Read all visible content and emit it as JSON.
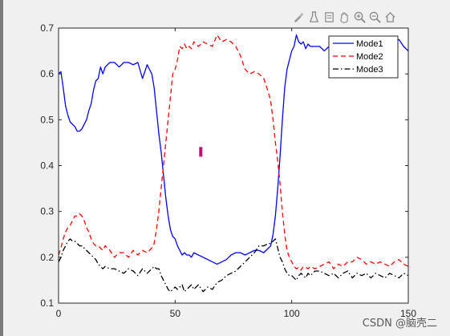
{
  "toolbar": {
    "icons": [
      "brush-icon",
      "datatip-icon",
      "rotate-icon",
      "pan-icon",
      "zoom-in-icon",
      "zoom-out-icon",
      "home-icon"
    ]
  },
  "watermark": "CSDN @脑壳二",
  "colors": {
    "mode1": "#0000ff",
    "mode2": "#ff0000",
    "mode3": "#000000",
    "marker": "#cc0077",
    "figure_bg": "#f0f0f0",
    "axes_bg": "#ffffff"
  },
  "chart_data": {
    "type": "line",
    "title": "",
    "xlabel": "",
    "ylabel": "",
    "xlim": [
      0,
      150
    ],
    "ylim": [
      0.1,
      0.7
    ],
    "xticks": [
      "0",
      "50",
      "100",
      "150"
    ],
    "yticks": [
      "0.1",
      "0.2",
      "0.3",
      "0.4",
      "0.5",
      "0.6",
      "0.7"
    ],
    "grid": false,
    "legend_position": "top-right",
    "annotations": [
      {
        "type": "marker",
        "x": 61,
        "y": 0.43
      }
    ],
    "series": [
      {
        "name": "Mode1",
        "style": "solid",
        "x": [
          0,
          1,
          2,
          3,
          4,
          5,
          6,
          7,
          8,
          9,
          10,
          11,
          12,
          13,
          14,
          15,
          16,
          17,
          18,
          19,
          20,
          22,
          24,
          26,
          28,
          30,
          32,
          34,
          36,
          38,
          40,
          41,
          42,
          43,
          44,
          45,
          46,
          47,
          48,
          49,
          50,
          51,
          52,
          53,
          54,
          55,
          56,
          57,
          58,
          60,
          62,
          64,
          66,
          68,
          70,
          72,
          74,
          76,
          78,
          80,
          82,
          84,
          86,
          88,
          90,
          91,
          92,
          93,
          94,
          95,
          96,
          97,
          98,
          99,
          100,
          101,
          102,
          103,
          104,
          105,
          106,
          107,
          108,
          110,
          112,
          114,
          116,
          118,
          120,
          122,
          124,
          126,
          128,
          130,
          132,
          134,
          136,
          138,
          140,
          142,
          144,
          146,
          148,
          150
        ],
        "values": [
          0.6,
          0.605,
          0.57,
          0.53,
          0.51,
          0.495,
          0.49,
          0.485,
          0.475,
          0.475,
          0.48,
          0.49,
          0.5,
          0.52,
          0.535,
          0.565,
          0.585,
          0.59,
          0.615,
          0.6,
          0.615,
          0.625,
          0.625,
          0.615,
          0.625,
          0.625,
          0.62,
          0.625,
          0.59,
          0.62,
          0.6,
          0.57,
          0.52,
          0.47,
          0.43,
          0.38,
          0.33,
          0.29,
          0.26,
          0.245,
          0.24,
          0.225,
          0.215,
          0.205,
          0.21,
          0.205,
          0.205,
          0.2,
          0.21,
          0.205,
          0.2,
          0.195,
          0.19,
          0.185,
          0.19,
          0.195,
          0.205,
          0.21,
          0.21,
          0.205,
          0.21,
          0.215,
          0.215,
          0.21,
          0.22,
          0.225,
          0.25,
          0.29,
          0.35,
          0.42,
          0.5,
          0.57,
          0.61,
          0.63,
          0.65,
          0.66,
          0.685,
          0.67,
          0.665,
          0.67,
          0.655,
          0.665,
          0.66,
          0.66,
          0.66,
          0.65,
          0.66,
          0.645,
          0.635,
          0.66,
          0.63,
          0.65,
          0.625,
          0.64,
          0.625,
          0.645,
          0.64,
          0.62,
          0.64,
          0.66,
          0.67,
          0.675,
          0.66,
          0.65
        ]
      },
      {
        "name": "Mode2",
        "style": "dashed",
        "x": [
          0,
          1,
          2,
          3,
          4,
          5,
          6,
          7,
          8,
          9,
          10,
          11,
          12,
          13,
          14,
          15,
          16,
          17,
          18,
          19,
          20,
          22,
          24,
          26,
          28,
          30,
          32,
          34,
          36,
          38,
          40,
          41,
          42,
          43,
          44,
          45,
          46,
          47,
          48,
          49,
          50,
          51,
          52,
          53,
          54,
          55,
          56,
          57,
          58,
          60,
          62,
          64,
          66,
          68,
          70,
          72,
          74,
          76,
          78,
          80,
          82,
          84,
          86,
          88,
          90,
          91,
          92,
          93,
          94,
          95,
          96,
          97,
          98,
          99,
          100,
          101,
          102,
          103,
          104,
          105,
          106,
          107,
          108,
          110,
          112,
          114,
          116,
          118,
          120,
          122,
          124,
          126,
          128,
          130,
          132,
          134,
          136,
          138,
          140,
          142,
          144,
          146,
          148,
          150
        ],
        "values": [
          0.205,
          0.22,
          0.24,
          0.255,
          0.265,
          0.27,
          0.28,
          0.29,
          0.29,
          0.295,
          0.29,
          0.28,
          0.265,
          0.255,
          0.24,
          0.23,
          0.225,
          0.225,
          0.22,
          0.215,
          0.225,
          0.215,
          0.2,
          0.21,
          0.21,
          0.2,
          0.215,
          0.205,
          0.215,
          0.21,
          0.22,
          0.23,
          0.26,
          0.3,
          0.35,
          0.4,
          0.45,
          0.5,
          0.55,
          0.6,
          0.61,
          0.63,
          0.66,
          0.655,
          0.665,
          0.655,
          0.66,
          0.655,
          0.67,
          0.66,
          0.67,
          0.665,
          0.66,
          0.685,
          0.67,
          0.675,
          0.67,
          0.66,
          0.64,
          0.61,
          0.6,
          0.605,
          0.6,
          0.59,
          0.56,
          0.54,
          0.5,
          0.45,
          0.41,
          0.36,
          0.3,
          0.25,
          0.215,
          0.2,
          0.19,
          0.18,
          0.175,
          0.178,
          0.172,
          0.18,
          0.178,
          0.175,
          0.18,
          0.175,
          0.18,
          0.185,
          0.19,
          0.175,
          0.185,
          0.18,
          0.19,
          0.19,
          0.2,
          0.195,
          0.185,
          0.19,
          0.185,
          0.19,
          0.185,
          0.18,
          0.19,
          0.195,
          0.185,
          0.18
        ]
      },
      {
        "name": "Mode3",
        "style": "dashdot",
        "x": [
          0,
          1,
          2,
          3,
          4,
          5,
          6,
          7,
          8,
          9,
          10,
          11,
          12,
          13,
          14,
          15,
          16,
          17,
          18,
          19,
          20,
          22,
          24,
          26,
          28,
          30,
          32,
          34,
          36,
          38,
          40,
          41,
          42,
          43,
          44,
          45,
          46,
          47,
          48,
          49,
          50,
          51,
          52,
          53,
          54,
          55,
          56,
          57,
          58,
          60,
          62,
          64,
          66,
          68,
          70,
          72,
          74,
          76,
          78,
          80,
          82,
          84,
          86,
          88,
          90,
          91,
          92,
          93,
          94,
          95,
          96,
          97,
          98,
          99,
          100,
          101,
          102,
          103,
          104,
          105,
          106,
          107,
          108,
          110,
          112,
          114,
          116,
          118,
          120,
          122,
          124,
          126,
          128,
          130,
          132,
          134,
          136,
          138,
          140,
          142,
          144,
          146,
          148,
          150
        ],
        "values": [
          0.19,
          0.2,
          0.215,
          0.225,
          0.235,
          0.24,
          0.235,
          0.235,
          0.23,
          0.225,
          0.225,
          0.22,
          0.215,
          0.21,
          0.205,
          0.2,
          0.195,
          0.185,
          0.18,
          0.175,
          0.18,
          0.175,
          0.175,
          0.17,
          0.165,
          0.175,
          0.17,
          0.16,
          0.175,
          0.165,
          0.175,
          0.18,
          0.175,
          0.175,
          0.16,
          0.15,
          0.14,
          0.13,
          0.125,
          0.13,
          0.135,
          0.13,
          0.135,
          0.14,
          0.125,
          0.13,
          0.135,
          0.14,
          0.13,
          0.14,
          0.125,
          0.135,
          0.13,
          0.145,
          0.15,
          0.16,
          0.165,
          0.17,
          0.18,
          0.19,
          0.2,
          0.21,
          0.225,
          0.225,
          0.23,
          0.23,
          0.235,
          0.24,
          0.22,
          0.2,
          0.19,
          0.175,
          0.165,
          0.16,
          0.16,
          0.155,
          0.15,
          0.16,
          0.165,
          0.16,
          0.155,
          0.165,
          0.16,
          0.17,
          0.17,
          0.165,
          0.16,
          0.165,
          0.155,
          0.165,
          0.17,
          0.155,
          0.165,
          0.16,
          0.165,
          0.155,
          0.165,
          0.16,
          0.155,
          0.165,
          0.16,
          0.155,
          0.165,
          0.16
        ]
      }
    ]
  }
}
